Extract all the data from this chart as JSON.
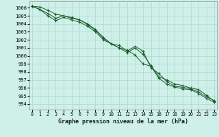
{
  "title": "Graphe pression niveau de la mer (hPa)",
  "ylabel_ticks": [
    994,
    995,
    996,
    997,
    998,
    999,
    1000,
    1001,
    1002,
    1003,
    1004,
    1005,
    1006
  ],
  "xlim": [
    -0.3,
    23.3
  ],
  "ylim": [
    993.3,
    1006.8
  ],
  "background_color": "#cff0e8",
  "grid_color": "#a8d8cc",
  "line_color": "#1a5c2a",
  "series1": [
    1006.2,
    1006.1,
    1005.7,
    1005.2,
    1005.0,
    1004.8,
    1004.5,
    1004.0,
    1003.3,
    1002.3,
    1001.5,
    1001.0,
    1000.7,
    1000.1,
    999.0,
    998.7,
    997.2,
    996.5,
    996.1,
    995.9,
    995.8,
    995.3,
    994.7,
    994.2
  ],
  "series2": [
    1006.2,
    1005.8,
    1005.3,
    1004.7,
    1005.0,
    1004.7,
    1004.5,
    1003.9,
    1003.2,
    1002.2,
    1001.5,
    1001.3,
    1000.6,
    1001.2,
    1000.6,
    998.5,
    997.8,
    996.8,
    996.2,
    996.1,
    995.9,
    995.5,
    994.9,
    994.4
  ],
  "series3": [
    1006.2,
    1005.8,
    1005.0,
    1004.4,
    1004.8,
    1004.5,
    1004.2,
    1003.7,
    1003.0,
    1002.0,
    1001.5,
    1001.0,
    1000.4,
    1001.0,
    1000.2,
    998.8,
    997.4,
    997.0,
    996.5,
    996.3,
    996.0,
    995.8,
    995.1,
    994.3
  ],
  "x": [
    0,
    1,
    2,
    3,
    4,
    5,
    6,
    7,
    8,
    9,
    10,
    11,
    12,
    13,
    14,
    15,
    16,
    17,
    18,
    19,
    20,
    21,
    22,
    23
  ]
}
